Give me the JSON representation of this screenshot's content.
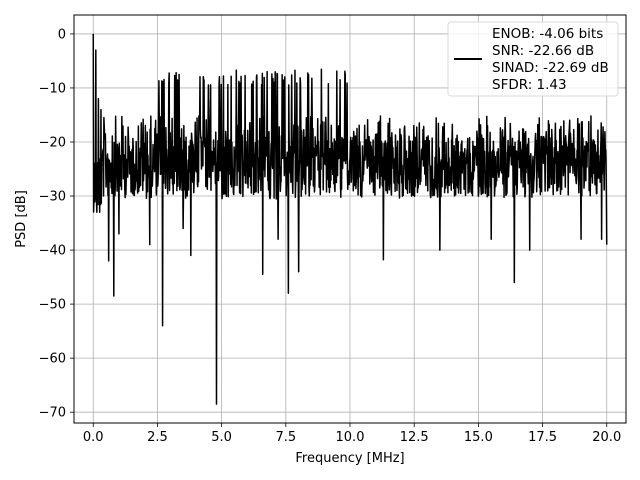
{
  "chart_data": {
    "type": "line",
    "xlabel": "Frequency [MHz]",
    "ylabel": "PSD [dB]",
    "xlim": [
      -0.75,
      20.75
    ],
    "ylim": [
      -72,
      3.5
    ],
    "xticks": [
      0.0,
      2.5,
      5.0,
      7.5,
      10.0,
      12.5,
      15.0,
      17.5,
      20.0
    ],
    "xtick_labels": [
      "0.0",
      "2.5",
      "5.0",
      "7.5",
      "10.0",
      "12.5",
      "15.0",
      "17.5",
      "20.0"
    ],
    "yticks": [
      0,
      -10,
      -20,
      -30,
      -40,
      -50,
      -60,
      -70
    ],
    "ytick_labels": [
      "0",
      "−10",
      "−20",
      "−30",
      "−40",
      "−50",
      "−60",
      "−70"
    ],
    "grid": true,
    "legend": {
      "placement": "upper right",
      "lines": [
        "ENOB: -4.06 bits",
        "SNR: -22.66 dB",
        "SINAD: -22.69 dB",
        "SFDR: 1.43"
      ]
    },
    "series": [
      {
        "color": "#000000",
        "band": {
          "x": [
            0.0,
            20.0
          ],
          "upper": -8,
          "lower": -30,
          "center": -19
        },
        "x": [
          0.0,
          0.04,
          0.1,
          0.14,
          0.2,
          0.25,
          0.3,
          0.4,
          0.6,
          0.8,
          1.0,
          1.3,
          2.2,
          2.7,
          3.5,
          3.8,
          4.8,
          6.6,
          7.2,
          7.6,
          8.0,
          11.3,
          13.5,
          15.5,
          16.4,
          17.0,
          19.0,
          19.8,
          20.0
        ],
        "y": [
          0.0,
          -24.0,
          -3.0,
          -33.0,
          -12.0,
          -33.0,
          -14.0,
          -30.0,
          -42.0,
          -48.5,
          -37.0,
          -26.0,
          -39.0,
          -54.0,
          -36.0,
          -41.0,
          -68.5,
          -44.5,
          -38.0,
          -48.0,
          -44.0,
          -41.8,
          -40.0,
          -38.0,
          -46.0,
          -40.0,
          -38.0,
          -38.0,
          -39.0
        ]
      }
    ]
  }
}
